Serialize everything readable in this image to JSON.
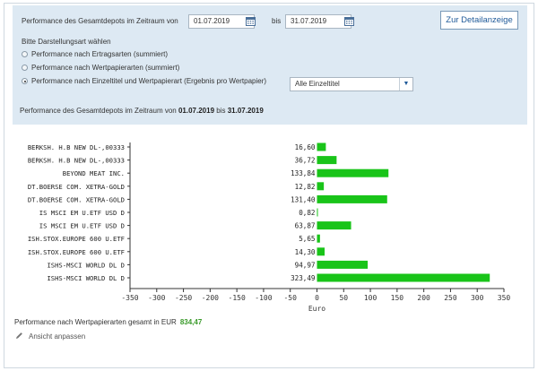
{
  "filter": {
    "period_label": "Performance des Gesamtdepots im Zeitraum von",
    "date_from": "01.07.2019",
    "between_label": "bis",
    "date_to": "31.07.2019",
    "detail_button": "Zur Detailanzeige",
    "mode_label": "Bitte Darstellungsart wählen",
    "options": [
      {
        "label": "Performance nach Ertragsarten (summiert)",
        "selected": false
      },
      {
        "label": "Performance nach Wertpapierarten (summiert)",
        "selected": false
      },
      {
        "label": "Performance nach Einzeltitel und Wertpapierart (Ergebnis pro Wertpapier)",
        "selected": true
      }
    ],
    "select_value": "Alle Einzeltitel",
    "summary_prefix": "Performance des Gesamtdepots im Zeitraum von",
    "summary_from": "01.07.2019",
    "summary_between": "bis",
    "summary_to": "31.07.2019"
  },
  "chart_data": {
    "type": "bar",
    "orientation": "horizontal",
    "categories": [
      "BERKSH. H.B NEW DL-,00333",
      "BERKSH. H.B NEW DL-,00333",
      "BEYOND MEAT INC.",
      "DT.BOERSE COM. XETRA-GOLD",
      "DT.BOERSE COM. XETRA-GOLD",
      "IS MSCI EM U.ETF USD D",
      "IS MSCI EM U.ETF USD D",
      "ISH.STOX.EUROPE 600 U.ETF",
      "ISH.STOX.EUROPE 600 U.ETF",
      "ISHS-MSCI WORLD DL D",
      "ISHS-MSCI WORLD DL D"
    ],
    "values": [
      16.6,
      36.72,
      133.84,
      12.82,
      131.4,
      0.82,
      63.87,
      5.65,
      14.3,
      94.97,
      323.49
    ],
    "value_labels": [
      "16,60",
      "36,72",
      "133,84",
      "12,82",
      "131,40",
      "0,82",
      "63,87",
      "5,65",
      "14,30",
      "94,97",
      "323,49"
    ],
    "xlim": [
      -350,
      350
    ],
    "xticks": [
      -350,
      -300,
      -250,
      -200,
      -150,
      -100,
      -50,
      0,
      50,
      100,
      150,
      200,
      250,
      300,
      350
    ],
    "xtick_labels": [
      "-350",
      "-300",
      "-250",
      "-200",
      "-150",
      "-100",
      "-50",
      "0",
      "50",
      "100",
      "150",
      "200",
      "250",
      "300",
      "350"
    ],
    "xlabel": "Euro",
    "bar_color": "#19c419"
  },
  "total": {
    "label": "Performance nach Wertpapierarten gesamt in EUR",
    "value": "834,47"
  },
  "edit_link": "Ansicht anpassen",
  "icons": {
    "calendar": "calendar-icon",
    "edit": "pencil-icon",
    "dropdown": "chevron-down-icon"
  }
}
